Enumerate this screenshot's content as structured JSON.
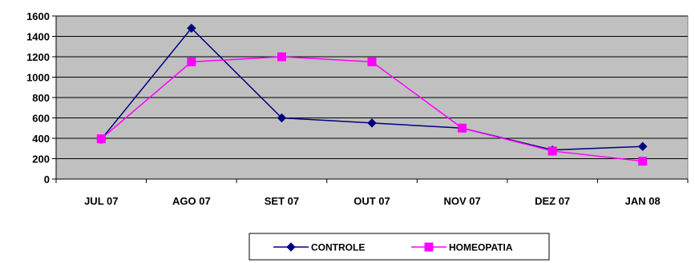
{
  "chart_data": {
    "type": "line",
    "title": "",
    "xlabel": "",
    "ylabel": "",
    "categories": [
      "JUL 07",
      "AGO 07",
      "SET 07",
      "OUT 07",
      "NOV 07",
      "DEZ 07",
      "JAN 08"
    ],
    "yticks": [
      "0",
      "200",
      "400",
      "600",
      "800",
      "1000",
      "1200",
      "1400",
      "1600"
    ],
    "ylim": [
      0,
      1600
    ],
    "grid": true,
    "legend_position": "bottom",
    "plot_background": "#c0c0c0",
    "series": [
      {
        "name": "CONTROLE",
        "color": "#000080",
        "marker": "diamond",
        "values": [
          390,
          1480,
          600,
          550,
          500,
          285,
          320
        ]
      },
      {
        "name": "HOMEOPATIA",
        "color": "#ff00ff",
        "marker": "square",
        "values": [
          395,
          1150,
          1200,
          1150,
          500,
          275,
          175
        ]
      }
    ]
  }
}
